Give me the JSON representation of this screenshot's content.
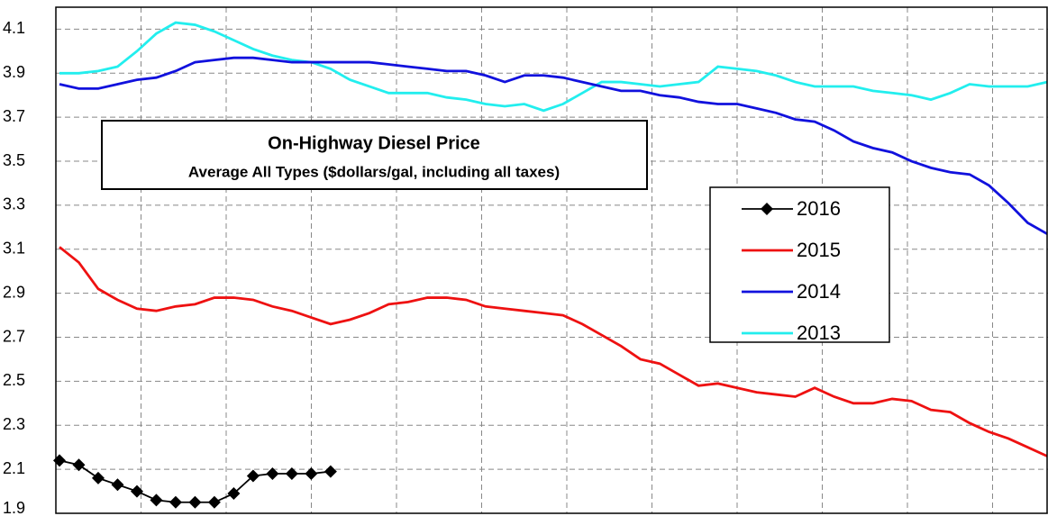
{
  "chart_data": {
    "type": "line",
    "title": "On-Highway Diesel Price",
    "subtitle": "Average All Types ($dollars/gal, including all taxes)",
    "x": [
      1,
      2,
      3,
      4,
      5,
      6,
      7,
      8,
      9,
      10,
      11,
      12,
      13,
      14,
      15,
      16,
      17,
      18,
      19,
      20,
      21,
      22,
      23,
      24,
      25,
      26,
      27,
      28,
      29,
      30,
      31,
      32,
      33,
      34,
      35,
      36,
      37,
      38,
      39,
      40,
      41,
      42,
      43,
      44,
      45,
      46,
      47,
      48,
      49,
      50,
      51,
      52
    ],
    "xlim": [
      1,
      52
    ],
    "ylim": [
      1.9,
      4.2
    ],
    "yticks": [
      1.9,
      2.1,
      2.3,
      2.5,
      2.7,
      2.9,
      3.1,
      3.3,
      3.5,
      3.7,
      3.9,
      4.1
    ],
    "grid": true,
    "series": [
      {
        "name": "2016",
        "color": "#000000",
        "marker": "diamond",
        "values": [
          2.14,
          2.12,
          2.06,
          2.03,
          2.0,
          1.96,
          1.95,
          1.95,
          1.95,
          1.99,
          2.07,
          2.08,
          2.08,
          2.08,
          2.09,
          null,
          null,
          null,
          null,
          null,
          null,
          null,
          null,
          null,
          null,
          null,
          null,
          null,
          null,
          null,
          null,
          null,
          null,
          null,
          null,
          null,
          null,
          null,
          null,
          null,
          null,
          null,
          null,
          null,
          null,
          null,
          null,
          null,
          null,
          null,
          null,
          null
        ]
      },
      {
        "name": "2015",
        "color": "#ee1111",
        "values": [
          3.11,
          3.04,
          2.92,
          2.87,
          2.83,
          2.82,
          2.84,
          2.85,
          2.88,
          2.88,
          2.87,
          2.84,
          2.82,
          2.79,
          2.76,
          2.78,
          2.81,
          2.85,
          2.86,
          2.88,
          2.88,
          2.87,
          2.84,
          2.83,
          2.82,
          2.81,
          2.8,
          2.76,
          2.71,
          2.66,
          2.6,
          2.58,
          2.53,
          2.48,
          2.49,
          2.47,
          2.45,
          2.44,
          2.43,
          2.47,
          2.43,
          2.4,
          2.4,
          2.42,
          2.41,
          2.37,
          2.36,
          2.31,
          2.27,
          2.24,
          2.2,
          2.16
        ]
      },
      {
        "name": "2014",
        "color": "#1111dd",
        "values": [
          3.85,
          3.83,
          3.83,
          3.85,
          3.87,
          3.88,
          3.91,
          3.95,
          3.96,
          3.97,
          3.97,
          3.96,
          3.95,
          3.95,
          3.95,
          3.95,
          3.95,
          3.94,
          3.93,
          3.92,
          3.91,
          3.91,
          3.89,
          3.86,
          3.89,
          3.89,
          3.88,
          3.86,
          3.84,
          3.82,
          3.82,
          3.8,
          3.79,
          3.77,
          3.76,
          3.76,
          3.74,
          3.72,
          3.69,
          3.68,
          3.64,
          3.59,
          3.56,
          3.54,
          3.5,
          3.47,
          3.45,
          3.44,
          3.39,
          3.31,
          3.22,
          3.17
        ]
      },
      {
        "name": "2013",
        "color": "#22eeee",
        "values": [
          3.9,
          3.9,
          3.91,
          3.93,
          4.0,
          4.08,
          4.13,
          4.12,
          4.09,
          4.05,
          4.01,
          3.98,
          3.96,
          3.95,
          3.92,
          3.87,
          3.84,
          3.81,
          3.81,
          3.81,
          3.79,
          3.78,
          3.76,
          3.75,
          3.76,
          3.73,
          3.76,
          3.81,
          3.86,
          3.86,
          3.85,
          3.84,
          3.85,
          3.86,
          3.93,
          3.92,
          3.91,
          3.89,
          3.86,
          3.84,
          3.84,
          3.84,
          3.82,
          3.81,
          3.8,
          3.78,
          3.81,
          3.85,
          3.84,
          3.84,
          3.84,
          3.86
        ]
      }
    ]
  }
}
